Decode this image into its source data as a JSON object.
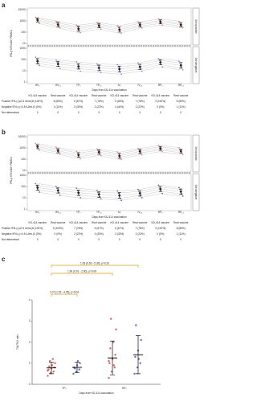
{
  "chart_data": [
    {
      "type": "line",
      "label": "a",
      "ylabel": "IFN-γ SFCs/10⁶ PBMCs",
      "xlabel": "Days from KD-414 vaccination",
      "log": true,
      "categories": [
        "HV₀",
        "HV₁₄",
        "TP₀",
        "TP₁₄",
        "IV₀",
        "IV₁₄",
        "RP₀",
        "RP₁₄"
      ],
      "top": {
        "side_label": "Seropositive",
        "color": "#e06666",
        "ylim": [
          10,
          10000
        ],
        "yticks": [
          10,
          100,
          1000,
          10000
        ],
        "subjects": [
          [
            2100,
            900,
            420,
            700,
            380,
            820,
            1500,
            900
          ],
          [
            1600,
            650,
            300,
            520,
            260,
            610,
            1100,
            650
          ],
          [
            1200,
            480,
            210,
            390,
            170,
            450,
            820,
            470
          ],
          [
            850,
            350,
            140,
            280,
            120,
            330,
            600,
            330
          ],
          [
            620,
            240,
            90,
            190,
            80,
            230,
            430,
            240
          ]
        ],
        "mean": [
          1200,
          480,
          200,
          380,
          170,
          450,
          820,
          460
        ],
        "ci_low": [
          800,
          300,
          120,
          240,
          100,
          290,
          540,
          290
        ],
        "ci_high": [
          1800,
          760,
          340,
          600,
          290,
          700,
          1250,
          720
        ]
      },
      "bottom": {
        "side_label": "Seronegative",
        "color": "#5b6fc4",
        "ylim": [
          1,
          1000
        ],
        "yticks": [
          1,
          10,
          100,
          1000
        ],
        "subjects": [
          [
            160,
            90,
            60,
            40,
            35,
            50,
            120,
            70
          ],
          [
            110,
            60,
            38,
            28,
            22,
            34,
            85,
            48
          ],
          [
            70,
            40,
            25,
            18,
            14,
            22,
            55,
            30
          ],
          [
            45,
            24,
            15,
            11,
            8,
            14,
            35,
            18
          ],
          [
            30,
            15,
            9,
            7,
            5,
            9,
            22,
            12
          ]
        ],
        "mean": [
          70,
          40,
          24,
          18,
          14,
          22,
          55,
          30
        ],
        "ci_low": [
          40,
          24,
          14,
          10,
          8,
          13,
          33,
          17
        ],
        "ci_high": [
          120,
          70,
          42,
          32,
          26,
          38,
          95,
          55
        ]
      },
      "table": {
        "header": [
          "KD-414 vaccine",
          "Real vaccine",
          "KD-414 vaccine",
          "Real vaccine",
          "KD-414 vaccine",
          "Real vaccine",
          "KD-414 vaccine",
          "Real vaccine"
        ],
        "rows": [
          {
            "label": "Positive IFN-γ (≥0.5 IU/mL)",
            "cells": [
              "9 (100%)",
              "8 (89%)",
              "6 (67%)",
              "7 (78%)",
              "5 (56%)",
              "7 (78%)",
              "9 (100%)",
              "8 (89%)"
            ]
          },
          {
            "label": "Negative IFN-γ (<0.5 IU/mL)",
            "cells": [
              "0 (0%)",
              "1 (11%)",
              "3 (33%)",
              "2 (22%)",
              "4 (44%)",
              "2 (22%)",
              "0 (0%)",
              "1 (11%)"
            ]
          },
          {
            "label": "Not determined",
            "cells": [
              "0",
              "0",
              "0",
              "0",
              "0",
              "0",
              "0",
              "0"
            ]
          }
        ]
      }
    },
    {
      "type": "line",
      "label": "b",
      "ylabel": "IFN-γ SFCs/10⁶ PBMCs",
      "xlabel": "Days from KD-414 vaccination",
      "log": true,
      "categories": [
        "HV₀",
        "HV₁₄",
        "TP₀",
        "TP₁₄",
        "IV₀",
        "IV₁₄",
        "RP₀",
        "RP₁₄"
      ],
      "top": {
        "side_label": "Seropositive",
        "color": "#e06666",
        "ylim": [
          10,
          10000
        ],
        "yticks": [
          10,
          100,
          1000,
          10000
        ],
        "subjects": [
          [
            2500,
            1100,
            500,
            800,
            420,
            900,
            1700,
            1000
          ],
          [
            1800,
            780,
            350,
            600,
            300,
            680,
            1250,
            720
          ],
          [
            1300,
            560,
            240,
            430,
            200,
            500,
            900,
            520
          ],
          [
            900,
            400,
            160,
            300,
            140,
            360,
            650,
            370
          ],
          [
            650,
            280,
            110,
            210,
            95,
            250,
            460,
            260
          ]
        ],
        "mean": [
          1300,
          560,
          240,
          430,
          200,
          500,
          900,
          520
        ],
        "ci_low": [
          850,
          360,
          150,
          270,
          120,
          320,
          600,
          330
        ],
        "ci_high": [
          1950,
          860,
          380,
          680,
          330,
          780,
          1350,
          800
        ]
      },
      "bottom": {
        "side_label": "Seronegative",
        "color": "#2c3e8c",
        "ylim": [
          1,
          1000
        ],
        "yticks": [
          1,
          10,
          100,
          1000
        ],
        "subjects": [
          [
            180,
            100,
            70,
            45,
            40,
            55,
            130,
            80
          ],
          [
            120,
            68,
            45,
            30,
            26,
            38,
            90,
            55
          ],
          [
            80,
            45,
            28,
            20,
            16,
            25,
            60,
            35
          ],
          [
            50,
            28,
            17,
            12,
            9,
            16,
            38,
            22
          ],
          [
            32,
            17,
            10,
            8,
            6,
            10,
            24,
            14
          ]
        ],
        "mean": [
          80,
          45,
          28,
          20,
          16,
          25,
          60,
          35
        ],
        "ci_low": [
          46,
          26,
          16,
          11,
          9,
          14,
          36,
          20
        ],
        "ci_high": [
          135,
          78,
          48,
          34,
          29,
          43,
          100,
          60
        ]
      },
      "table": {
        "header": [
          "KD-414 vaccine",
          "Real vaccine",
          "KD-414 vaccine",
          "Real vaccine",
          "KD-414 vaccine",
          "Real vaccine",
          "KD-414 vaccine",
          "Real vaccine"
        ],
        "rows": [
          {
            "label": "Positive IFN-γ (≥0.5 IU/mL)",
            "cells": [
              "9 (100%)",
              "9 (100%)",
              "7 (78%)",
              "6 (67%)",
              "6 (67%)",
              "7 (78%)",
              "9 (100%)",
              "8 (89%)"
            ]
          },
          {
            "label": "Negative IFN-γ (<0.5 IU/mL)",
            "cells": [
              "0 (0%)",
              "0 (0%)",
              "2 (22%)",
              "3 (33%)",
              "3 (33%)",
              "2 (22%)",
              "0 (0%)",
              "1 (11%)"
            ]
          },
          {
            "label": "Not determined",
            "cells": [
              "0",
              "0",
              "0",
              "0",
              "0",
              "0",
              "0",
              "0"
            ]
          }
        ]
      }
    },
    {
      "type": "scatter",
      "label": "c",
      "ylabel": "Th1/Th2 ratio",
      "xlabel": "Days from KD-414 vaccination",
      "categories": [
        "TP₀",
        "RP₀"
      ],
      "ylim": [
        0,
        4
      ],
      "yticks": [
        0,
        1,
        2,
        3,
        4
      ],
      "groups": [
        {
          "color": "#d04040",
          "values": [
            0.4,
            0.55,
            0.6,
            0.7,
            0.75,
            0.8,
            0.85,
            0.9,
            1.0,
            1.1,
            1.2,
            0.65
          ],
          "mean": 0.78,
          "sd_low": 0.5,
          "sd_high": 1.05
        },
        {
          "color": "#3a50b0",
          "values": [
            0.5,
            0.6,
            0.7,
            0.8,
            0.9,
            1.0,
            0.75,
            1.1
          ],
          "mean": 0.8,
          "sd_low": 0.55,
          "sd_high": 1.05
        },
        {
          "color": "#d04040",
          "values": [
            0.3,
            0.6,
            0.8,
            1.0,
            1.2,
            1.4,
            1.7,
            2.0,
            2.6,
            3.1,
            0.9,
            1.1
          ],
          "mean": 1.25,
          "sd_low": 0.45,
          "sd_high": 2.05
        },
        {
          "color": "#3a50b0",
          "values": [
            0.5,
            0.8,
            1.0,
            1.3,
            1.6,
            2.1,
            2.8,
            1.2
          ],
          "mean": 1.4,
          "sd_low": 0.5,
          "sd_high": 2.3
        }
      ],
      "brackets": [
        "1.63 (0.63 - 3.39), p=0.20",
        "1.60 (0.91 - 2.80), p=0.09",
        "2.07 (1.03 - 4.05), p=0.04"
      ]
    }
  ]
}
